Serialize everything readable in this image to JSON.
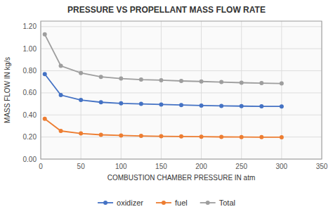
{
  "chart_data": {
    "type": "line",
    "title": "PRESSURE VS PROPELLANT MASS FLOW RATE",
    "xlabel": "COMBUSTION CHAMBER PRESSURE IN atm",
    "ylabel": "MASS FLOW IN kg/s",
    "x": [
      5,
      25,
      50,
      75,
      100,
      125,
      150,
      175,
      200,
      225,
      250,
      275,
      300
    ],
    "series": [
      {
        "name": "oxidizer",
        "color": "#4472c4",
        "values": [
          0.77,
          0.58,
          0.535,
          0.515,
          0.505,
          0.5,
          0.495,
          0.49,
          0.485,
          0.482,
          0.48,
          0.478,
          0.477
        ]
      },
      {
        "name": "fuel",
        "color": "#ed7d31",
        "values": [
          0.365,
          0.255,
          0.232,
          0.22,
          0.214,
          0.21,
          0.207,
          0.205,
          0.203,
          0.201,
          0.2,
          0.199,
          0.198
        ]
      },
      {
        "name": "Total",
        "color": "#9e9e9e",
        "values": [
          1.13,
          0.845,
          0.78,
          0.745,
          0.73,
          0.72,
          0.715,
          0.708,
          0.703,
          0.698,
          0.692,
          0.688,
          0.685
        ]
      }
    ],
    "xlim": [
      0,
      350
    ],
    "ylim": [
      0.0,
      1.25
    ],
    "xticks": [
      0,
      50,
      100,
      150,
      200,
      250,
      300,
      350
    ],
    "yticks": [
      {
        "value": 0.0,
        "label": "0.00"
      },
      {
        "value": 0.2,
        "label": "0.20"
      },
      {
        "value": 0.4,
        "label": "0.40"
      },
      {
        "value": 0.6,
        "label": "0.60"
      },
      {
        "value": 0.8,
        "label": "0.80"
      },
      {
        "value": 1.0,
        "label": "1.00"
      },
      {
        "value": 1.2,
        "label": "1.20"
      }
    ],
    "grid": true,
    "legend": "bottom",
    "marker": "circle"
  }
}
